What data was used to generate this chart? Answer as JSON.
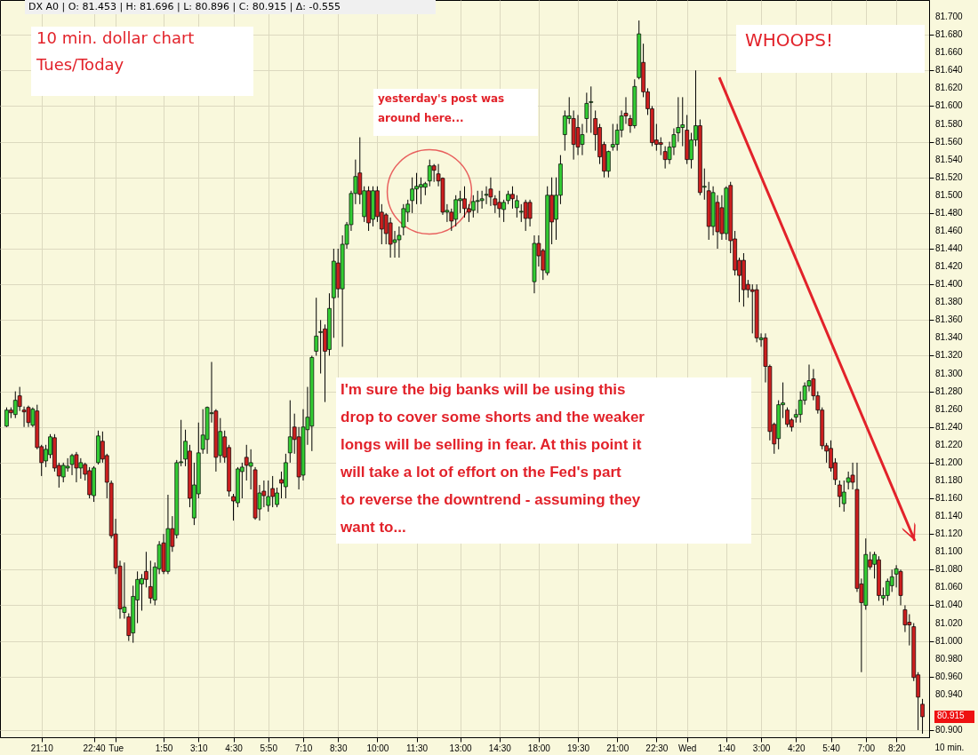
{
  "chart_data": {
    "type": "candlestick",
    "categories": [
      null,
      null,
      null,
      null,
      null,
      null,
      null,
      null,
      "21:10",
      null,
      null,
      null,
      null,
      null,
      null,
      null,
      null,
      null,
      null,
      null,
      "22:40",
      null,
      null,
      null,
      null,
      "Tue",
      null,
      null,
      null,
      null,
      null,
      null,
      null,
      null,
      null,
      null,
      "1:50",
      null,
      null,
      null,
      null,
      null,
      null,
      null,
      "3:10",
      null,
      null,
      null,
      null,
      null,
      null,
      null,
      "4:30",
      null,
      null,
      null,
      null,
      null,
      null,
      null,
      "5:50",
      null,
      null,
      null,
      null,
      null,
      null,
      null,
      "7:10",
      null,
      null,
      null,
      null,
      null,
      null,
      null,
      "8:30",
      null,
      null,
      null,
      null,
      null,
      null,
      null,
      null,
      "10:00",
      null,
      null,
      null,
      null,
      null,
      null,
      null,
      null,
      "11:30",
      null,
      null,
      null,
      null,
      null,
      null,
      null,
      null,
      null,
      "13:00",
      null,
      null,
      null,
      null,
      null,
      null,
      null,
      null,
      "14:30",
      null,
      null,
      null,
      null,
      null,
      null,
      null,
      null,
      "18:00",
      null,
      null,
      null,
      null,
      null,
      null,
      null,
      null,
      "19:30",
      null,
      null,
      null,
      null,
      null,
      null,
      null,
      null,
      "21:00",
      null,
      null,
      null,
      null,
      null,
      null,
      null,
      null,
      "22:30",
      null,
      null,
      null,
      null,
      null,
      null,
      "Wed",
      null,
      null,
      null,
      null,
      null,
      null,
      null,
      null,
      "1:40",
      null,
      null,
      null,
      null,
      null,
      null,
      null,
      "3:00",
      null,
      null,
      null,
      null,
      null,
      null,
      null,
      "4:20",
      null,
      null,
      null,
      null,
      null,
      null,
      null,
      "5:40",
      null,
      null,
      null,
      null,
      null,
      null,
      null,
      "7:00",
      null,
      null,
      null,
      null,
      null,
      null,
      "8:20",
      null,
      null,
      null,
      null,
      null,
      null
    ],
    "ohlc": [
      [
        81.241,
        81.262,
        81.24,
        81.259
      ],
      [
        81.259,
        81.262,
        81.25,
        81.256
      ],
      [
        81.254,
        81.28,
        81.25,
        81.27
      ],
      [
        81.275,
        81.285,
        81.258,
        81.263
      ],
      [
        81.259,
        81.263,
        81.24,
        81.257
      ],
      [
        81.262,
        81.264,
        81.24,
        81.245
      ],
      [
        81.242,
        81.262,
        81.24,
        81.26
      ],
      [
        81.258,
        81.265,
        81.215,
        81.217
      ],
      [
        81.218,
        81.22,
        81.185,
        81.2
      ],
      [
        81.202,
        81.22,
        81.195,
        81.215
      ],
      [
        81.209,
        81.232,
        81.205,
        81.229
      ],
      [
        81.228,
        81.232,
        81.19,
        81.194
      ],
      [
        81.197,
        81.2,
        81.172,
        81.185
      ],
      [
        81.184,
        81.2,
        81.178,
        81.197
      ],
      [
        81.194,
        81.205,
        81.19,
        81.196
      ],
      [
        81.198,
        81.21,
        81.186,
        81.208
      ],
      [
        81.209,
        81.212,
        81.178,
        81.194
      ],
      [
        81.194,
        81.205,
        81.182,
        81.2
      ],
      [
        81.198,
        81.2,
        81.18,
        81.187
      ],
      [
        81.191,
        81.195,
        81.16,
        81.164
      ],
      [
        81.163,
        81.196,
        81.156,
        81.194
      ],
      [
        81.2,
        81.236,
        81.198,
        81.23
      ],
      [
        81.224,
        81.235,
        81.2,
        81.204
      ],
      [
        81.208,
        81.21,
        81.16,
        81.178
      ],
      [
        81.177,
        81.18,
        81.115,
        81.118
      ],
      [
        81.12,
        81.137,
        81.075,
        81.082
      ],
      [
        81.084,
        81.09,
        81.025,
        81.036
      ],
      [
        81.032,
        81.088,
        81.025,
        81.038
      ],
      [
        81.027,
        81.031,
        81.0,
        81.006
      ],
      [
        81.009,
        81.062,
        80.998,
        81.05
      ],
      [
        81.046,
        81.078,
        81.02,
        81.069
      ],
      [
        81.064,
        81.075,
        81.034,
        81.07
      ],
      [
        81.078,
        81.1,
        81.06,
        81.069
      ],
      [
        81.061,
        81.09,
        81.042,
        81.048
      ],
      [
        81.046,
        81.088,
        81.04,
        81.083
      ],
      [
        81.081,
        81.112,
        81.075,
        81.108
      ],
      [
        81.11,
        81.12,
        81.075,
        81.078
      ],
      [
        81.078,
        81.164,
        81.075,
        81.126
      ],
      [
        81.126,
        81.14,
        81.1,
        81.106
      ],
      [
        81.119,
        81.203,
        81.115,
        81.2
      ],
      [
        81.2,
        81.248,
        81.196,
        81.201
      ],
      [
        81.204,
        81.237,
        81.196,
        81.224
      ],
      [
        81.213,
        81.22,
        81.15,
        81.16
      ],
      [
        81.138,
        81.2,
        81.13,
        81.175
      ],
      [
        81.165,
        81.245,
        81.16,
        81.211
      ],
      [
        81.215,
        81.26,
        81.21,
        81.231
      ],
      [
        81.226,
        81.263,
        81.21,
        81.262
      ],
      [
        81.255,
        81.313,
        81.245,
        81.256
      ],
      [
        81.258,
        81.26,
        81.19,
        81.206
      ],
      [
        81.208,
        81.25,
        81.2,
        81.235
      ],
      [
        81.229,
        81.236,
        81.2,
        81.206
      ],
      [
        81.217,
        81.22,
        81.162,
        81.168
      ],
      [
        81.162,
        81.165,
        81.135,
        81.157
      ],
      [
        81.155,
        81.195,
        81.15,
        81.193
      ],
      [
        81.19,
        81.2,
        81.16,
        81.195
      ],
      [
        81.206,
        81.22,
        81.18,
        81.197
      ],
      [
        81.196,
        81.215,
        81.17,
        81.2
      ],
      [
        81.192,
        81.195,
        81.136,
        81.138
      ],
      [
        81.148,
        81.175,
        81.135,
        81.166
      ],
      [
        81.168,
        81.18,
        81.15,
        81.163
      ],
      [
        81.152,
        81.18,
        81.145,
        81.162
      ],
      [
        81.171,
        81.185,
        81.15,
        81.162
      ],
      [
        81.153,
        81.172,
        81.15,
        81.166
      ],
      [
        81.181,
        81.19,
        81.16,
        81.177
      ],
      [
        81.173,
        81.21,
        81.16,
        81.2
      ],
      [
        81.211,
        81.27,
        81.2,
        81.229
      ],
      [
        81.24,
        81.255,
        81.21,
        81.226
      ],
      [
        81.229,
        81.24,
        81.17,
        81.184
      ],
      [
        81.186,
        81.26,
        81.18,
        81.24
      ],
      [
        81.237,
        81.285,
        81.22,
        81.251
      ],
      [
        81.241,
        81.32,
        81.213,
        81.318
      ],
      [
        81.325,
        81.385,
        81.32,
        81.342
      ],
      [
        81.346,
        81.36,
        81.3,
        81.347
      ],
      [
        81.35,
        81.355,
        81.268,
        81.325
      ],
      [
        81.327,
        81.39,
        81.32,
        81.373
      ],
      [
        81.385,
        81.44,
        81.34,
        81.426
      ],
      [
        81.424,
        81.44,
        81.385,
        81.395
      ],
      [
        81.395,
        81.455,
        81.33,
        81.445
      ],
      [
        81.445,
        81.47,
        81.44,
        81.467
      ],
      [
        81.467,
        81.505,
        81.46,
        81.502
      ],
      [
        81.502,
        81.54,
        81.49,
        81.521
      ],
      [
        81.525,
        81.565,
        81.49,
        81.501
      ],
      [
        81.476,
        81.51,
        81.47,
        81.505
      ],
      [
        81.505,
        81.51,
        81.46,
        81.469
      ],
      [
        81.473,
        81.51,
        81.465,
        81.505
      ],
      [
        81.505,
        81.51,
        81.47,
        81.476
      ],
      [
        81.481,
        81.49,
        81.445,
        81.462
      ],
      [
        81.478,
        81.48,
        81.445,
        81.457
      ],
      [
        81.469,
        81.475,
        81.43,
        81.445
      ],
      [
        81.447,
        81.46,
        81.43,
        81.45
      ],
      [
        81.45,
        81.465,
        81.43,
        81.455
      ],
      [
        81.464,
        81.49,
        81.455,
        81.485
      ],
      [
        81.481,
        81.495,
        81.47,
        81.49
      ],
      [
        81.494,
        81.52,
        81.48,
        81.507
      ],
      [
        81.507,
        81.525,
        81.49,
        81.51
      ],
      [
        81.509,
        81.52,
        81.49,
        81.512
      ],
      [
        81.509,
        81.515,
        81.5,
        81.513
      ],
      [
        81.516,
        81.54,
        81.51,
        81.533
      ],
      [
        81.533,
        81.535,
        81.515,
        81.528
      ],
      [
        81.524,
        81.535,
        81.51,
        81.516
      ],
      [
        81.519,
        81.52,
        81.478,
        81.481
      ],
      [
        81.481,
        81.49,
        81.47,
        81.483
      ],
      [
        81.481,
        81.485,
        81.46,
        81.471
      ],
      [
        81.473,
        81.5,
        81.465,
        81.495
      ],
      [
        81.494,
        81.505,
        81.48,
        81.496
      ],
      [
        81.496,
        81.51,
        81.475,
        81.485
      ],
      [
        81.485,
        81.49,
        81.47,
        81.481
      ],
      [
        81.483,
        81.5,
        81.475,
        81.493
      ],
      [
        81.493,
        81.505,
        81.48,
        81.494
      ],
      [
        81.494,
        81.505,
        81.485,
        81.496
      ],
      [
        81.5,
        81.51,
        81.49,
        81.501
      ],
      [
        81.507,
        81.52,
        81.488,
        81.498
      ],
      [
        81.496,
        81.5,
        81.48,
        81.489
      ],
      [
        81.492,
        81.505,
        81.475,
        81.485
      ],
      [
        81.484,
        81.495,
        81.47,
        81.492
      ],
      [
        81.494,
        81.505,
        81.49,
        81.501
      ],
      [
        81.501,
        81.51,
        81.485,
        81.496
      ],
      [
        81.486,
        81.5,
        81.475,
        81.494
      ],
      [
        81.481,
        81.49,
        81.47,
        81.482
      ],
      [
        81.492,
        81.495,
        81.46,
        81.474
      ],
      [
        81.492,
        81.495,
        81.465,
        81.474
      ],
      [
        81.403,
        81.455,
        81.39,
        81.446
      ],
      [
        81.446,
        81.455,
        81.42,
        81.432
      ],
      [
        81.438,
        81.44,
        81.405,
        81.416
      ],
      [
        81.413,
        81.51,
        81.41,
        81.5
      ],
      [
        81.5,
        81.52,
        81.445,
        81.47
      ],
      [
        81.473,
        81.52,
        81.45,
        81.5
      ],
      [
        81.5,
        81.545,
        81.49,
        81.535
      ],
      [
        81.568,
        81.595,
        81.55,
        81.589
      ],
      [
        81.586,
        81.61,
        81.58,
        81.589
      ],
      [
        81.586,
        81.595,
        81.54,
        81.557
      ],
      [
        81.576,
        81.59,
        81.545,
        81.554
      ],
      [
        81.557,
        81.58,
        81.545,
        81.568
      ],
      [
        81.586,
        81.615,
        81.57,
        81.603
      ],
      [
        81.604,
        81.622,
        81.57,
        81.605
      ],
      [
        81.586,
        81.595,
        81.55,
        81.568
      ],
      [
        81.576,
        81.58,
        81.535,
        81.543
      ],
      [
        81.557,
        81.56,
        81.52,
        81.527
      ],
      [
        81.527,
        81.55,
        81.52,
        81.549
      ],
      [
        81.554,
        81.58,
        81.55,
        81.557
      ],
      [
        81.557,
        81.58,
        81.55,
        81.573
      ],
      [
        81.573,
        81.595,
        81.565,
        81.589
      ],
      [
        81.592,
        81.61,
        81.58,
        81.589
      ],
      [
        81.586,
        81.59,
        81.57,
        81.578
      ],
      [
        81.578,
        81.63,
        81.575,
        81.622
      ],
      [
        81.632,
        81.696,
        81.63,
        81.681
      ],
      [
        81.649,
        81.67,
        81.61,
        81.616
      ],
      [
        81.616,
        81.62,
        81.59,
        81.597
      ],
      [
        81.597,
        81.6,
        81.555,
        81.559
      ],
      [
        81.562,
        81.58,
        81.55,
        81.557
      ],
      [
        81.559,
        81.565,
        81.545,
        81.557
      ],
      [
        81.549,
        81.555,
        81.53,
        81.54
      ],
      [
        81.54,
        81.56,
        81.535,
        81.554
      ],
      [
        81.554,
        81.575,
        81.545,
        81.568
      ],
      [
        81.57,
        81.61,
        81.56,
        81.576
      ],
      [
        81.576,
        81.61,
        81.555,
        81.579
      ],
      [
        81.573,
        81.59,
        81.535,
        81.54
      ],
      [
        81.54,
        81.57,
        81.53,
        81.562
      ],
      [
        81.562,
        81.64,
        81.555,
        81.578
      ],
      [
        81.578,
        81.585,
        81.5,
        81.503
      ],
      [
        81.509,
        81.53,
        81.495,
        81.51
      ],
      [
        81.505,
        81.515,
        81.45,
        81.465
      ],
      [
        81.465,
        81.51,
        81.455,
        81.503
      ],
      [
        81.492,
        81.5,
        81.44,
        81.459
      ],
      [
        81.486,
        81.5,
        81.45,
        81.457
      ],
      [
        81.457,
        81.51,
        81.45,
        81.508
      ],
      [
        81.511,
        81.515,
        81.435,
        81.449
      ],
      [
        81.451,
        81.46,
        81.41,
        81.416
      ],
      [
        81.427,
        81.43,
        81.38,
        81.41
      ],
      [
        81.427,
        81.435,
        81.375,
        81.394
      ],
      [
        81.4,
        81.405,
        81.385,
        81.394
      ],
      [
        81.394,
        81.4,
        81.345,
        81.392
      ],
      [
        81.394,
        81.4,
        81.335,
        81.34
      ],
      [
        81.338,
        81.345,
        81.33,
        81.34
      ],
      [
        81.34,
        81.345,
        81.29,
        81.308
      ],
      [
        81.308,
        81.31,
        81.225,
        81.235
      ],
      [
        81.243,
        81.245,
        81.21,
        81.221
      ],
      [
        81.227,
        81.27,
        81.215,
        81.265
      ],
      [
        81.265,
        81.29,
        81.25,
        81.267
      ],
      [
        81.259,
        81.262,
        81.24,
        81.243
      ],
      [
        81.248,
        81.25,
        81.235,
        81.24
      ],
      [
        81.251,
        81.26,
        81.245,
        81.254
      ],
      [
        81.254,
        81.28,
        81.245,
        81.27
      ],
      [
        81.27,
        81.29,
        81.265,
        81.286
      ],
      [
        81.286,
        81.31,
        81.28,
        81.292
      ],
      [
        81.294,
        81.305,
        81.27,
        81.275
      ],
      [
        81.275,
        81.28,
        81.255,
        81.259
      ],
      [
        81.259,
        81.262,
        81.215,
        81.219
      ],
      [
        81.219,
        81.222,
        81.2,
        81.213
      ],
      [
        81.216,
        81.225,
        81.19,
        81.194
      ],
      [
        81.2,
        81.205,
        81.175,
        81.181
      ],
      [
        81.175,
        81.18,
        81.15,
        81.162
      ],
      [
        81.154,
        81.18,
        81.145,
        81.167
      ],
      [
        81.178,
        81.19,
        81.17,
        81.183
      ],
      [
        81.186,
        81.2,
        81.17,
        81.178
      ],
      [
        81.17,
        81.2,
        81.055,
        81.059
      ],
      [
        81.064,
        81.07,
        80.965,
        81.043
      ],
      [
        81.04,
        81.115,
        81.035,
        81.097
      ],
      [
        81.091,
        81.1,
        81.08,
        81.083
      ],
      [
        81.086,
        81.1,
        81.07,
        81.097
      ],
      [
        81.091,
        81.095,
        81.045,
        81.051
      ],
      [
        81.048,
        81.06,
        81.04,
        81.051
      ],
      [
        81.051,
        81.07,
        81.045,
        81.067
      ],
      [
        81.062,
        81.08,
        81.055,
        81.072
      ],
      [
        81.075,
        81.085,
        81.06,
        81.081
      ],
      [
        81.078,
        81.08,
        81.04,
        81.051
      ],
      [
        81.035,
        81.04,
        81.01,
        81.018
      ],
      [
        81.021,
        81.03,
        80.995,
        81.018
      ],
      [
        81.016,
        81.02,
        80.955,
        80.959
      ],
      [
        80.962,
        80.965,
        80.9,
        80.937
      ],
      [
        80.929,
        80.935,
        80.896,
        80.915
      ]
    ],
    "xlabel": "10 min.",
    "ylim": [
      80.892,
      81.719
    ],
    "yticks": [
      {
        "value": 80.9,
        "label": "80.900"
      },
      {
        "value": 80.94,
        "label": "80.940"
      },
      {
        "value": 80.96,
        "label": "80.960"
      },
      {
        "value": 80.98,
        "label": "80.980"
      },
      {
        "value": 81.0,
        "label": "81.000"
      },
      {
        "value": 81.02,
        "label": "81.020"
      },
      {
        "value": 81.04,
        "label": "81.040"
      },
      {
        "value": 81.06,
        "label": "81.060"
      },
      {
        "value": 81.08,
        "label": "81.080"
      },
      {
        "value": 81.1,
        "label": "81.100"
      },
      {
        "value": 81.12,
        "label": "81.120"
      },
      {
        "value": 81.14,
        "label": "81.140"
      },
      {
        "value": 81.16,
        "label": "81.160"
      },
      {
        "value": 81.18,
        "label": "81.180"
      },
      {
        "value": 81.2,
        "label": "81.200"
      },
      {
        "value": 81.22,
        "label": "81.220"
      },
      {
        "value": 81.24,
        "label": "81.240"
      },
      {
        "value": 81.26,
        "label": "81.260"
      },
      {
        "value": 81.28,
        "label": "81.280"
      },
      {
        "value": 81.3,
        "label": "81.300"
      },
      {
        "value": 81.32,
        "label": "81.320"
      },
      {
        "value": 81.34,
        "label": "81.340"
      },
      {
        "value": 81.36,
        "label": "81.360"
      },
      {
        "value": 81.38,
        "label": "81.380"
      },
      {
        "value": 81.4,
        "label": "81.400"
      },
      {
        "value": 81.42,
        "label": "81.420"
      },
      {
        "value": 81.44,
        "label": "81.440"
      },
      {
        "value": 81.46,
        "label": "81.460"
      },
      {
        "value": 81.48,
        "label": "81.480"
      },
      {
        "value": 81.5,
        "label": "81.500"
      },
      {
        "value": 81.52,
        "label": "81.520"
      },
      {
        "value": 81.54,
        "label": "81.540"
      },
      {
        "value": 81.56,
        "label": "81.560"
      },
      {
        "value": 81.58,
        "label": "81.580"
      },
      {
        "value": 81.6,
        "label": "81.600"
      },
      {
        "value": 81.62,
        "label": "81.620"
      },
      {
        "value": 81.64,
        "label": "81.640"
      },
      {
        "value": 81.66,
        "label": "81.660"
      },
      {
        "value": 81.68,
        "label": "81.680"
      },
      {
        "value": 81.7,
        "label": "81.700"
      }
    ],
    "grid": true,
    "annotations": [
      "DX A0 | O: 81.453 | H: 81.696 | L: 80.896 | C: 80.915 | Δ: -0.555",
      "10 min. dollar chart\nTues/Today",
      "yesterday's post was\naround here...",
      "I'm sure the big banks will be using this\ndrop to cover some shorts and the weaker\nlongs will be selling in fear.  At this point it\nwill take a lot of effort on the Fed's part\nto reverse the downtrend - assuming they\nwant to...",
      "WHOOPS!",
      "80.915"
    ]
  }
}
